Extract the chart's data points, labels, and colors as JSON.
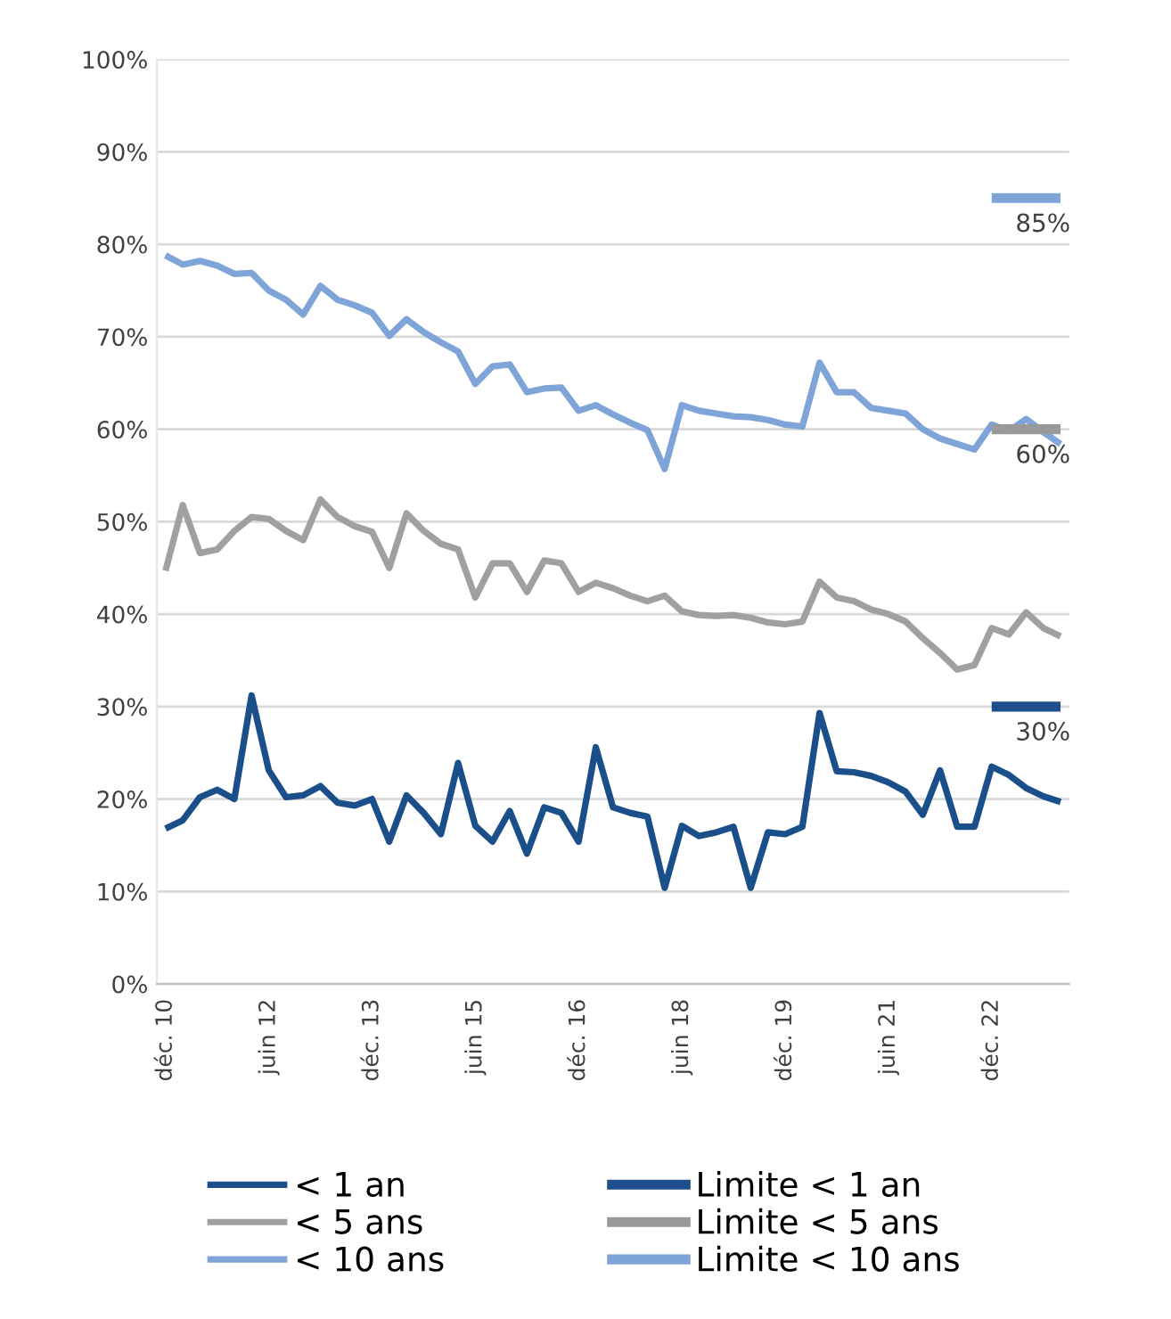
{
  "chart_data": {
    "type": "line",
    "categories": [
      "déc. 10",
      null,
      null,
      null,
      null,
      null,
      "juin 12",
      null,
      null,
      null,
      null,
      null,
      "déc. 13",
      null,
      null,
      null,
      null,
      null,
      "juin 15",
      null,
      null,
      null,
      null,
      null,
      "déc. 16",
      null,
      null,
      null,
      null,
      null,
      "juin 18",
      null,
      null,
      null,
      null,
      null,
      "déc. 19",
      null,
      null,
      null,
      null,
      null,
      "juin 21",
      null,
      null,
      null,
      null,
      null,
      "déc. 22",
      null,
      null,
      null,
      null
    ],
    "series": [
      {
        "name": "< 1 an",
        "color": "#1b4f8a",
        "values": [
          16.8,
          17.7,
          20.2,
          21,
          20,
          31.2,
          23.1,
          20.2,
          20.4,
          21.4,
          19.6,
          19.3,
          20,
          15.4,
          20.4,
          18.5,
          16.2,
          23.9,
          17.1,
          15.4,
          18.7,
          14.1,
          19.1,
          18.5,
          15.4,
          25.6,
          19.1,
          18.5,
          18.1,
          10.4,
          17.1,
          16,
          16.4,
          17,
          10.4,
          16.4,
          16.2,
          17,
          29.3,
          23,
          22.9,
          22.5,
          21.8,
          20.8,
          18.3,
          23.1,
          17,
          17,
          23.5,
          22.6,
          21.2,
          20.3,
          19.7
        ]
      },
      {
        "name": "< 5 ans",
        "color": "#a0a0a0",
        "values": [
          44.7,
          51.8,
          46.6,
          47,
          49,
          50.5,
          50.3,
          49,
          48,
          52.4,
          50.5,
          49.5,
          48.9,
          45,
          50.9,
          49,
          47.6,
          47,
          41.8,
          45.5,
          45.5,
          42.4,
          45.8,
          45.5,
          42.4,
          43.4,
          42.8,
          42,
          41.4,
          42,
          40.3,
          39.9,
          39.8,
          39.9,
          39.6,
          39.1,
          38.9,
          39.2,
          43.5,
          41.8,
          41.4,
          40.5,
          40,
          39.2,
          37.4,
          35.8,
          34,
          34.5,
          38.5,
          37.8,
          40.2,
          38.5,
          37.6
        ]
      },
      {
        "name": "< 10 ans",
        "color": "#7ea4d8",
        "values": [
          78.8,
          77.8,
          78.2,
          77.7,
          76.8,
          76.9,
          75,
          74,
          72.4,
          75.5,
          74,
          73.4,
          72.6,
          70.1,
          71.9,
          70.5,
          69.4,
          68.4,
          64.9,
          66.8,
          67,
          64,
          64.4,
          64.5,
          62,
          62.6,
          61.6,
          60.7,
          59.9,
          55.7,
          62.6,
          62,
          61.7,
          61.4,
          61.3,
          61,
          60.5,
          60.3,
          67.2,
          64,
          64,
          62.3,
          62,
          61.7,
          60,
          59,
          58.4,
          57.8,
          60.5,
          59.8,
          61.1,
          59.7,
          58.4
        ]
      },
      {
        "name": "Limite < 1 an",
        "color": "#1f4e8c",
        "values": [
          null,
          null,
          null,
          null,
          null,
          null,
          null,
          null,
          null,
          null,
          null,
          null,
          null,
          null,
          null,
          null,
          null,
          null,
          null,
          null,
          null,
          null,
          null,
          null,
          null,
          null,
          null,
          null,
          null,
          null,
          null,
          null,
          null,
          null,
          null,
          null,
          null,
          null,
          null,
          null,
          null,
          null,
          null,
          null,
          null,
          null,
          null,
          null,
          30,
          30,
          30,
          30,
          30
        ],
        "value_labels": [
          null,
          null,
          null,
          null,
          null,
          null,
          null,
          null,
          null,
          null,
          null,
          null,
          null,
          null,
          null,
          null,
          null,
          null,
          null,
          null,
          null,
          null,
          null,
          null,
          null,
          null,
          null,
          null,
          null,
          null,
          null,
          null,
          null,
          null,
          null,
          null,
          null,
          null,
          null,
          null,
          null,
          null,
          null,
          null,
          null,
          null,
          null,
          null,
          null,
          null,
          null,
          null,
          "30%"
        ]
      },
      {
        "name": "Limite < 5 ans",
        "color": "#999999",
        "values": [
          null,
          null,
          null,
          null,
          null,
          null,
          null,
          null,
          null,
          null,
          null,
          null,
          null,
          null,
          null,
          null,
          null,
          null,
          null,
          null,
          null,
          null,
          null,
          null,
          null,
          null,
          null,
          null,
          null,
          null,
          null,
          null,
          null,
          null,
          null,
          null,
          null,
          null,
          null,
          null,
          null,
          null,
          null,
          null,
          null,
          null,
          null,
          null,
          60,
          60,
          60,
          60,
          60
        ],
        "value_labels": [
          null,
          null,
          null,
          null,
          null,
          null,
          null,
          null,
          null,
          null,
          null,
          null,
          null,
          null,
          null,
          null,
          null,
          null,
          null,
          null,
          null,
          null,
          null,
          null,
          null,
          null,
          null,
          null,
          null,
          null,
          null,
          null,
          null,
          null,
          null,
          null,
          null,
          null,
          null,
          null,
          null,
          null,
          null,
          null,
          null,
          null,
          null,
          null,
          null,
          null,
          null,
          null,
          "60%"
        ]
      },
      {
        "name": "Limite < 10 ans",
        "color": "#7ea4d8",
        "values": [
          null,
          null,
          null,
          null,
          null,
          null,
          null,
          null,
          null,
          null,
          null,
          null,
          null,
          null,
          null,
          null,
          null,
          null,
          null,
          null,
          null,
          null,
          null,
          null,
          null,
          null,
          null,
          null,
          null,
          null,
          null,
          null,
          null,
          null,
          null,
          null,
          null,
          null,
          null,
          null,
          null,
          null,
          null,
          null,
          null,
          null,
          null,
          null,
          85,
          85,
          85,
          85,
          85
        ],
        "value_labels": [
          null,
          null,
          null,
          null,
          null,
          null,
          null,
          null,
          null,
          null,
          null,
          null,
          null,
          null,
          null,
          null,
          null,
          null,
          null,
          null,
          null,
          null,
          null,
          null,
          null,
          null,
          null,
          null,
          null,
          null,
          null,
          null,
          null,
          null,
          null,
          null,
          null,
          null,
          null,
          null,
          null,
          null,
          null,
          null,
          null,
          null,
          null,
          null,
          null,
          null,
          null,
          null,
          "85%"
        ]
      }
    ],
    "ylim": [
      0,
      100
    ],
    "yticks": [
      {
        "value": 0,
        "label": "0%"
      },
      {
        "value": 10,
        "label": "10%"
      },
      {
        "value": 20,
        "label": "20%"
      },
      {
        "value": 30,
        "label": "30%"
      },
      {
        "value": 40,
        "label": "40%"
      },
      {
        "value": 50,
        "label": "50%"
      },
      {
        "value": 60,
        "label": "60%"
      },
      {
        "value": 70,
        "label": "70%"
      },
      {
        "value": 80,
        "label": "80%"
      },
      {
        "value": 90,
        "label": "90%"
      },
      {
        "value": 100,
        "label": "100%"
      }
    ],
    "grid": "y",
    "legend": "bottom",
    "marker": "none",
    "line_style": "solid"
  }
}
